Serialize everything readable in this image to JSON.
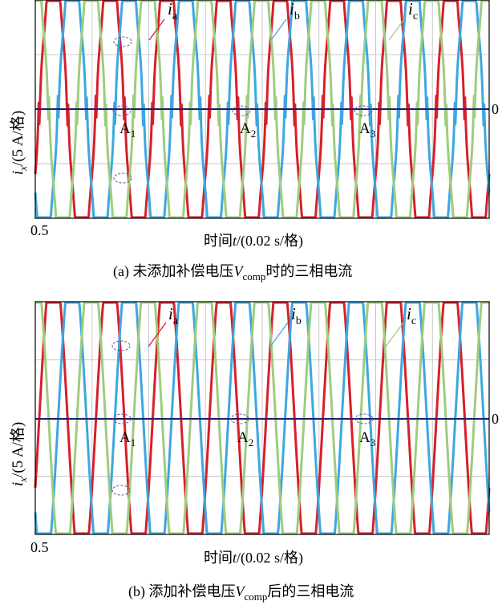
{
  "panels": [
    {
      "caption_prefix": "(a) 未添加补偿电压",
      "caption_V": "V",
      "caption_sub": "comp",
      "caption_suffix": "时的三相电流",
      "ylabel_i": "i",
      "ylabel_sub": "x",
      "ylabel_rest": "/(5 A/格)",
      "xlabel_pre": "时间",
      "xlabel_t": "t",
      "xlabel_rest": "/(0.02 s/格)",
      "x_start_tick": "0.5",
      "zero_tick": "0",
      "series_labels": [
        {
          "i": "i",
          "sub": "a"
        },
        {
          "i": "i",
          "sub": "b"
        },
        {
          "i": "i",
          "sub": "c"
        }
      ],
      "annotations": [
        {
          "main": "A",
          "sub": "1"
        },
        {
          "main": "A",
          "sub": "2"
        },
        {
          "main": "A",
          "sub": "3"
        }
      ]
    },
    {
      "caption_prefix": "(b) 添加补偿电压",
      "caption_V": "V",
      "caption_sub": "comp",
      "caption_suffix": "后的三相电流",
      "ylabel_i": "i",
      "ylabel_sub": "x",
      "ylabel_rest": "/(5 A/格)",
      "xlabel_pre": "时间",
      "xlabel_t": "t",
      "xlabel_rest": "/(0.02 s/格)",
      "x_start_tick": "0.5",
      "zero_tick": "0",
      "series_labels": [
        {
          "i": "i",
          "sub": "a"
        },
        {
          "i": "i",
          "sub": "b"
        },
        {
          "i": "i",
          "sub": "c"
        }
      ],
      "annotations": [
        {
          "main": "A",
          "sub": "1"
        },
        {
          "main": "A",
          "sub": "2"
        },
        {
          "main": "A",
          "sub": "3"
        }
      ]
    }
  ],
  "chart_data": [
    {
      "type": "line",
      "x_start": 0.5,
      "x_division": 0.02,
      "x_divisions": 8,
      "y_division": 5,
      "y_divisions": 4,
      "ylim": [
        -10,
        10
      ],
      "grid": true,
      "series": [
        {
          "label": "ia",
          "color": "#d71f2b",
          "amplitude": 14,
          "frequency_hz": 50,
          "phase_deg": -25,
          "distortion": "zero-crossing dead-time flattening"
        },
        {
          "label": "ib",
          "color": "#3da7e1",
          "amplitude": 14,
          "frequency_hz": 50,
          "phase_deg": -145,
          "distortion": "zero-crossing dead-time flattening"
        },
        {
          "label": "ic",
          "color": "#9fcc7f",
          "amplitude": 14,
          "frequency_hz": 50,
          "phase_deg": 95,
          "distortion": "zero-crossing dead-time flattening"
        }
      ],
      "reference_line": {
        "value": 0,
        "color": "#1d1d6d"
      }
    },
    {
      "type": "line",
      "x_start": 0.5,
      "x_division": 0.02,
      "x_divisions": 8,
      "y_division": 5,
      "y_divisions": 4,
      "ylim": [
        -10,
        10
      ],
      "grid": true,
      "series": [
        {
          "label": "ia",
          "color": "#d71f2b",
          "amplitude": 14,
          "frequency_hz": 50,
          "phase_deg": -25,
          "distortion": "none"
        },
        {
          "label": "ib",
          "color": "#3da7e1",
          "amplitude": 14,
          "frequency_hz": 50,
          "phase_deg": -145,
          "distortion": "none"
        },
        {
          "label": "ic",
          "color": "#9fcc7f",
          "amplitude": 14,
          "frequency_hz": 50,
          "phase_deg": 95,
          "distortion": "none"
        }
      ],
      "reference_line": {
        "value": 0,
        "color": "#1d1d6d"
      }
    }
  ]
}
